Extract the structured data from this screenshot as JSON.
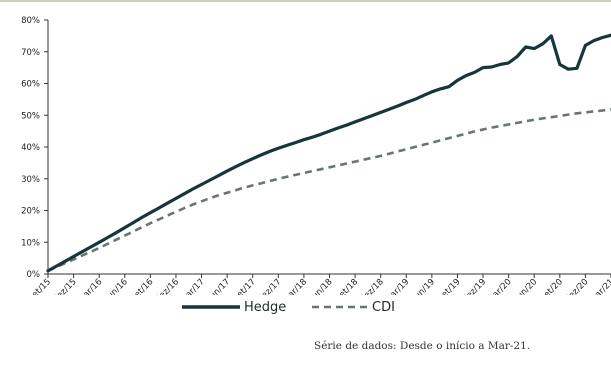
{
  "chart_data": {
    "type": "line",
    "title": "",
    "xlabel": "",
    "ylabel": "",
    "ylim": [
      0,
      80
    ],
    "yticks": [
      0,
      10,
      20,
      30,
      40,
      50,
      60,
      70,
      80
    ],
    "ytick_labels": [
      "0%",
      "10%",
      "20%",
      "30%",
      "40%",
      "50%",
      "60%",
      "70%",
      "80%"
    ],
    "x": [
      "set/15",
      "out/15",
      "nov/15",
      "dez/15",
      "jan/16",
      "fev/16",
      "mar/16",
      "abr/16",
      "mai/16",
      "jun/16",
      "jul/16",
      "ago/16",
      "set/16",
      "out/16",
      "nov/16",
      "dez/16",
      "jan/17",
      "fev/17",
      "mar/17",
      "abr/17",
      "mai/17",
      "jun/17",
      "jul/17",
      "ago/17",
      "set/17",
      "out/17",
      "nov/17",
      "dez/17",
      "jan/18",
      "fev/18",
      "mar/18",
      "abr/18",
      "mai/18",
      "jun/18",
      "jul/18",
      "ago/18",
      "set/18",
      "out/18",
      "nov/18",
      "dez/18",
      "jan/19",
      "fev/19",
      "mar/19",
      "abr/19",
      "mai/19",
      "jun/19",
      "jul/19",
      "ago/19",
      "set/19",
      "out/19",
      "nov/19",
      "dez/19",
      "jan/20",
      "fev/20",
      "mar/20",
      "abr/20",
      "mai/20",
      "jun/20",
      "jul/20",
      "ago/20",
      "set/20",
      "out/20",
      "nov/20",
      "dez/20",
      "jan/21",
      "fev/21",
      "mar/21"
    ],
    "x_tick_labels": [
      "set/15",
      "dez/15",
      "mar/16",
      "jun/16",
      "set/16",
      "dez/16",
      "mar/17",
      "jun/17",
      "set/17",
      "dez/17",
      "mar/18",
      "jun/18",
      "set/18",
      "dez/18",
      "mar/19",
      "jun/19",
      "set/19",
      "dez/19",
      "mar/20",
      "jun/20",
      "set/20",
      "dez/20",
      "mar/21"
    ],
    "legend_position": "bottom",
    "grid": false,
    "series": [
      {
        "name": "Hedge",
        "color": "#16373a",
        "style": "solid",
        "values": [
          1.0,
          2.5,
          4.0,
          5.5,
          7.0,
          8.5,
          10.0,
          11.5,
          13.0,
          14.6,
          16.2,
          17.8,
          19.3,
          20.8,
          22.3,
          23.8,
          25.3,
          26.8,
          28.2,
          29.6,
          31.0,
          32.4,
          33.8,
          35.1,
          36.3,
          37.5,
          38.6,
          39.6,
          40.5,
          41.4,
          42.3,
          43.1,
          44.0,
          45.0,
          46.0,
          46.9,
          47.9,
          48.9,
          49.9,
          50.9,
          51.9,
          52.9,
          54.0,
          55.0,
          56.2,
          57.4,
          58.3,
          59.0,
          61.0,
          62.5,
          63.5,
          65.0,
          65.2,
          66.0,
          66.5,
          68.5,
          71.5,
          71.0,
          72.5,
          75.0,
          66.0,
          64.5,
          64.8,
          72.0,
          73.5,
          74.5,
          75.2
        ]
      },
      {
        "name": "CDI",
        "color": "#687577",
        "style": "dashed",
        "values": [
          1.0,
          2.2,
          3.4,
          4.6,
          5.8,
          7.0,
          8.2,
          9.5,
          10.8,
          12.1,
          13.4,
          14.7,
          16.0,
          17.2,
          18.4,
          19.6,
          20.8,
          21.9,
          22.9,
          23.9,
          24.8,
          25.6,
          26.4,
          27.2,
          27.9,
          28.6,
          29.3,
          30.0,
          30.6,
          31.2,
          31.8,
          32.4,
          33.0,
          33.6,
          34.2,
          34.8,
          35.4,
          36.0,
          36.6,
          37.2,
          37.9,
          38.6,
          39.3,
          40.0,
          40.7,
          41.4,
          42.1,
          42.8,
          43.5,
          44.2,
          44.9,
          45.5,
          46.1,
          46.6,
          47.1,
          47.6,
          48.1,
          48.6,
          49.0,
          49.4,
          49.8,
          50.2,
          50.6,
          50.9,
          51.2,
          51.5,
          51.8
        ]
      }
    ]
  },
  "source_note": "Série de dados: Desde o início a Mar-21."
}
